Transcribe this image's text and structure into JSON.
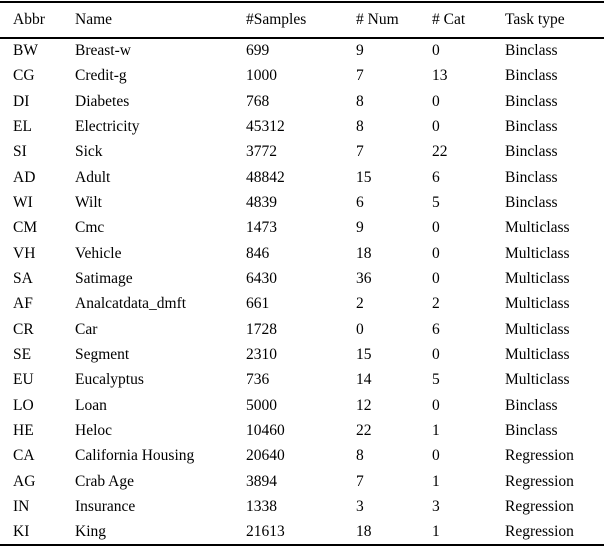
{
  "colors": {
    "background": "#ffffff",
    "text": "#000000",
    "rule": "#000000"
  },
  "table": {
    "columns": [
      "Abbr",
      "Name",
      "#Samples",
      "# Num",
      "# Cat",
      "Task type"
    ],
    "rows": [
      [
        "BW",
        "Breast-w",
        "699",
        "9",
        "0",
        "Binclass"
      ],
      [
        "CG",
        "Credit-g",
        "1000",
        "7",
        "13",
        "Binclass"
      ],
      [
        "DI",
        "Diabetes",
        "768",
        "8",
        "0",
        "Binclass"
      ],
      [
        "EL",
        "Electricity",
        "45312",
        "8",
        "0",
        "Binclass"
      ],
      [
        "SI",
        "Sick",
        "3772",
        "7",
        "22",
        "Binclass"
      ],
      [
        "AD",
        "Adult",
        "48842",
        "15",
        "6",
        "Binclass"
      ],
      [
        "WI",
        "Wilt",
        "4839",
        "6",
        "5",
        "Binclass"
      ],
      [
        "CM",
        "Cmc",
        "1473",
        "9",
        "0",
        "Multiclass"
      ],
      [
        "VH",
        "Vehicle",
        "846",
        "18",
        "0",
        "Multiclass"
      ],
      [
        "SA",
        "Satimage",
        "6430",
        "36",
        "0",
        "Multiclass"
      ],
      [
        "AF",
        "Analcatdata_dmft",
        "661",
        "2",
        "2",
        "Multiclass"
      ],
      [
        "CR",
        "Car",
        "1728",
        "0",
        "6",
        "Multiclass"
      ],
      [
        "SE",
        "Segment",
        "2310",
        "15",
        "0",
        "Multiclass"
      ],
      [
        "EU",
        "Eucalyptus",
        "736",
        "14",
        "5",
        "Multiclass"
      ],
      [
        "LO",
        "Loan",
        "5000",
        "12",
        "0",
        "Binclass"
      ],
      [
        "HE",
        "Heloc",
        "10460",
        "22",
        "1",
        "Binclass"
      ],
      [
        "CA",
        "California Housing",
        "20640",
        "8",
        "0",
        "Regression"
      ],
      [
        "AG",
        "Crab Age",
        "3894",
        "7",
        "1",
        "Regression"
      ],
      [
        "IN",
        "Insurance",
        "1338",
        "3",
        "3",
        "Regression"
      ],
      [
        "KI",
        "King",
        "21613",
        "18",
        "1",
        "Regression"
      ]
    ]
  }
}
